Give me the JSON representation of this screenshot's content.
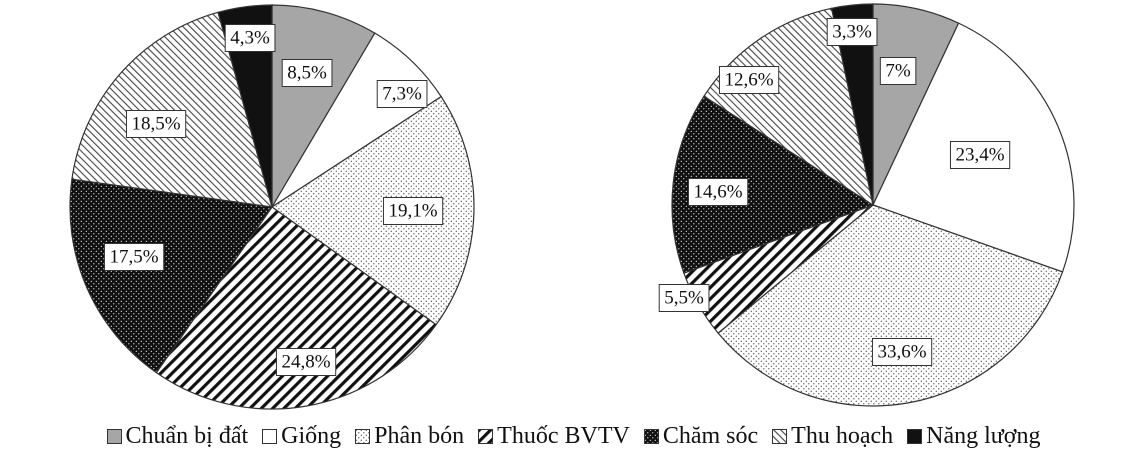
{
  "chart_data": [
    {
      "type": "pie",
      "title": "",
      "categories": [
        "Chuẩn bị đất",
        "Giống",
        "Phân bón",
        "Thuốc BVTV",
        "Chăm sóc",
        "Thu hoạch",
        "Năng lượng"
      ],
      "values": [
        8.5,
        7.3,
        19.1,
        24.8,
        17.5,
        18.5,
        4.3
      ],
      "labels": [
        "8,5%",
        "7,3%",
        "19,1%",
        "24,8%",
        "17,5%",
        "18,5%",
        "4,3%"
      ],
      "start_angle": "12 o'clock",
      "direction": "clockwise"
    },
    {
      "type": "pie",
      "title": "",
      "categories": [
        "Chuẩn bị đất",
        "Giống",
        "Phân bón",
        "Thuốc BVTV",
        "Chăm sóc",
        "Thu hoạch",
        "Năng lượng"
      ],
      "values": [
        7,
        23.4,
        33.6,
        5.5,
        14.6,
        12.6,
        3.3
      ],
      "labels": [
        "7%",
        "23,4%",
        "33,6%",
        "5,5%",
        "14,6%",
        "12,6%",
        "3,3%"
      ],
      "start_angle": "12 o'clock",
      "direction": "clockwise"
    }
  ],
  "legend": {
    "placement": "bottom",
    "items": [
      {
        "label": "Chuẩn bị đất",
        "pattern": "gray"
      },
      {
        "label": "Giống",
        "pattern": "white"
      },
      {
        "label": "Phân bón",
        "pattern": "dots"
      },
      {
        "label": "Thuốc BVTV",
        "pattern": "diagonal-dense"
      },
      {
        "label": "Chăm sóc",
        "pattern": "black-dots"
      },
      {
        "label": "Thu hoạch",
        "pattern": "diagonal-light"
      },
      {
        "label": "Năng lượng",
        "pattern": "black"
      }
    ]
  },
  "colors": {
    "gray": "#a6a6a6",
    "black": "#111111",
    "white": "#ffffff",
    "outline": "#333333"
  }
}
